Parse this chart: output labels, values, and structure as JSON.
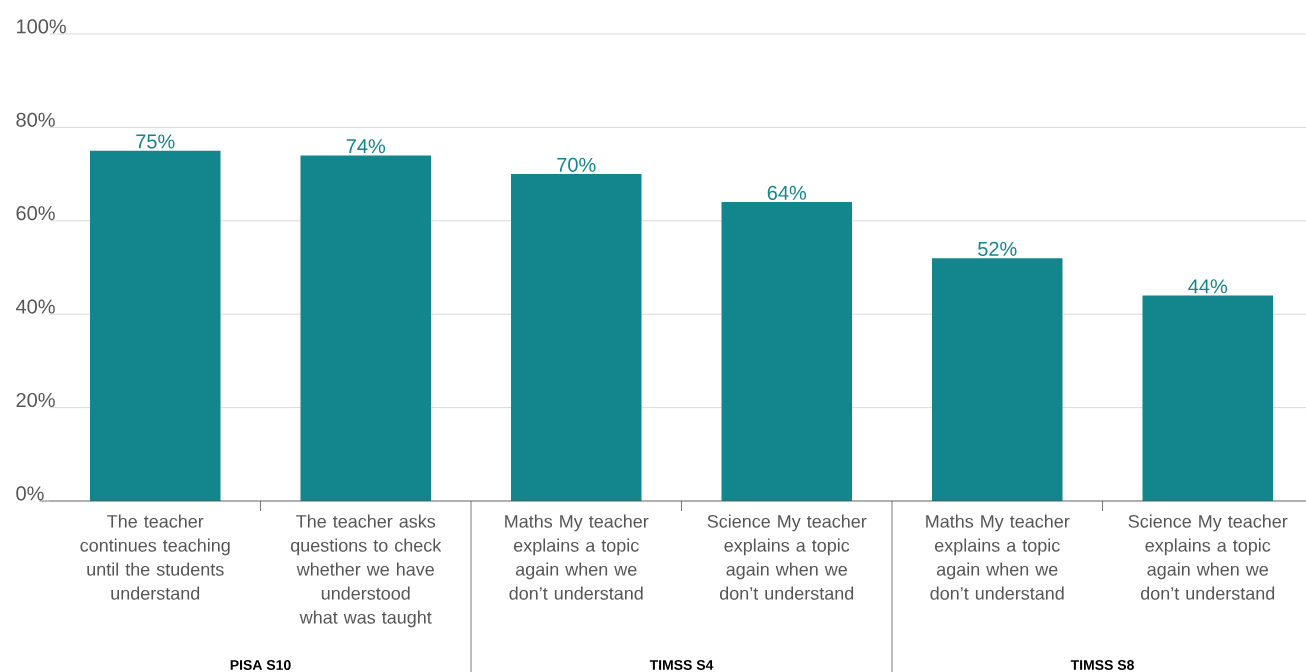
{
  "chart_data": {
    "type": "bar",
    "categories": [
      "The teacher continues teaching until the students understand",
      "The teacher asks questions to check whether we have understood what was taught",
      "Maths My teacher explains a topic again when we don’t understand",
      "Science My teacher explains a topic again when we don’t understand",
      "Maths My teacher explains a topic again when we don’t understand",
      "Science My teacher explains a topic again when we don’t understand"
    ],
    "values": [
      75,
      74,
      70,
      64,
      52,
      44
    ],
    "value_labels": [
      "75%",
      "74%",
      "70%",
      "64%",
      "52%",
      "44%"
    ],
    "color": "#13858c",
    "ylim": [
      0,
      100
    ],
    "yticks": [
      {
        "value": 0,
        "label": "0%"
      },
      {
        "value": 20,
        "label": "20%"
      },
      {
        "value": 40,
        "label": "40%"
      },
      {
        "value": 60,
        "label": "60%"
      },
      {
        "value": 80,
        "label": "80%"
      },
      {
        "value": 100,
        "label": "100%"
      }
    ],
    "grid": "y",
    "annotations": [
      "PISA S10",
      "TIMSS S4",
      "TIMSS S8"
    ]
  }
}
